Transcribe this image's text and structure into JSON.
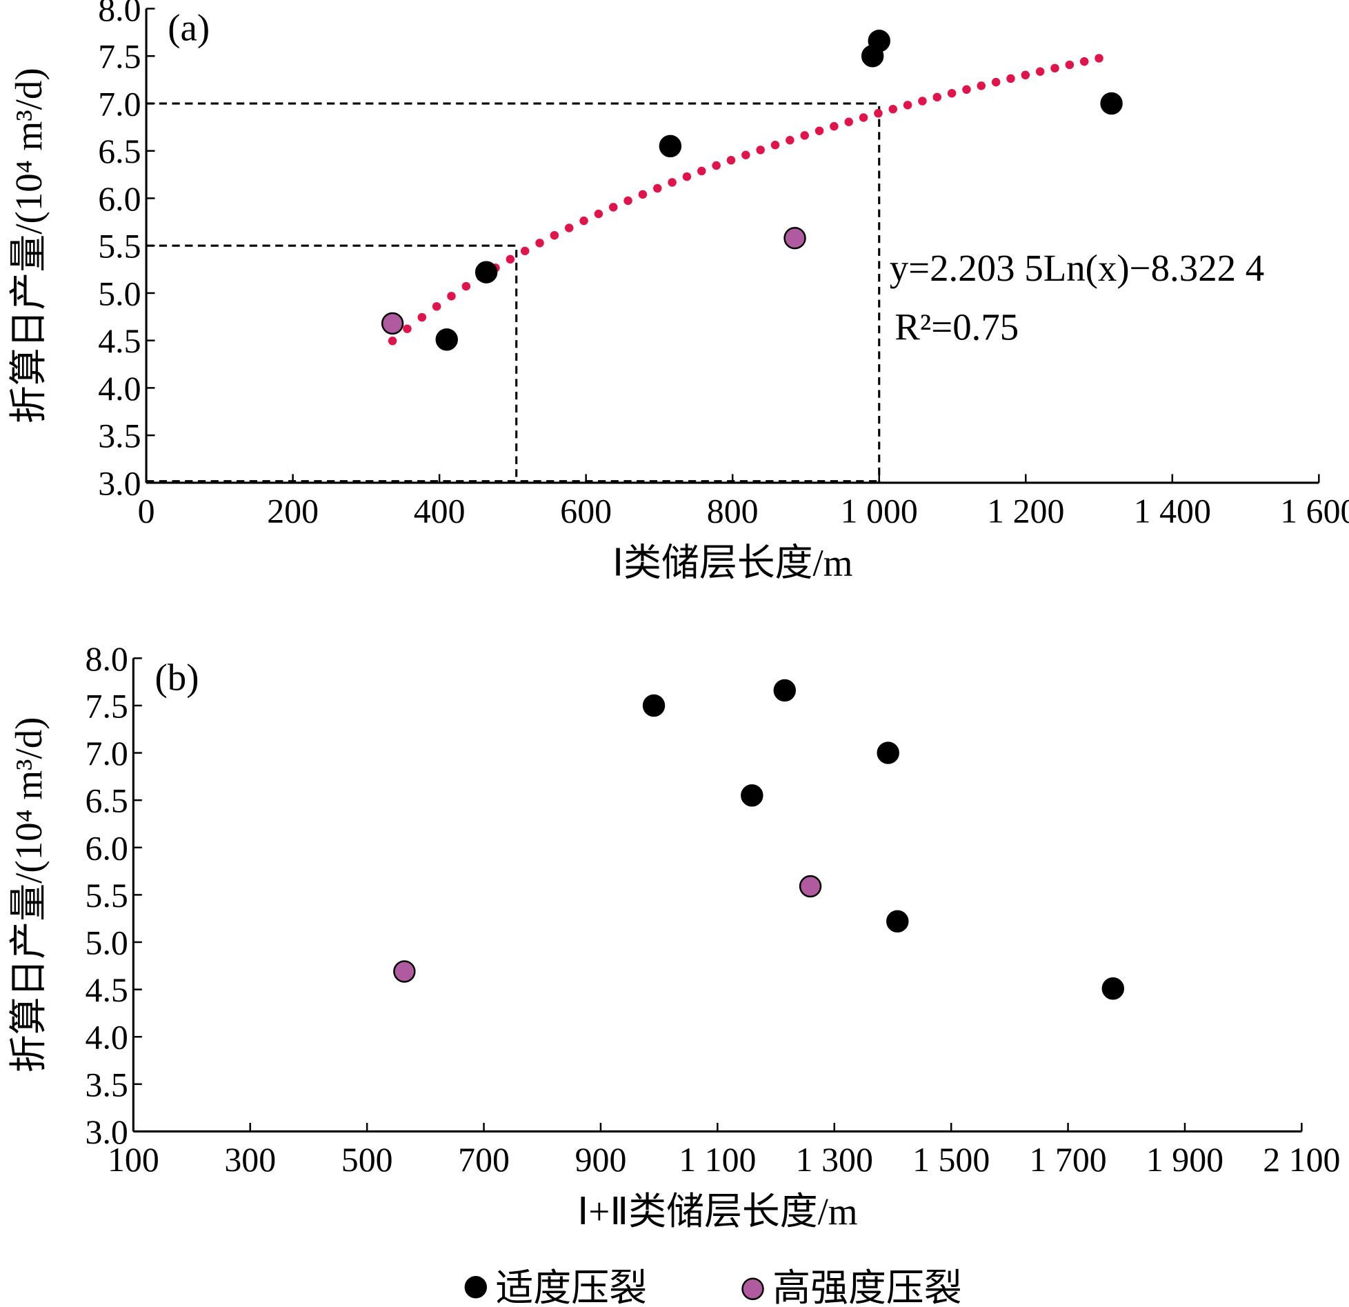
{
  "chart_data": [
    {
      "type": "scatter",
      "panel_label": "(a)",
      "xlabel": "Ⅰ类储层长度/m",
      "ylabel": "折算日产量/(10⁴ m³/d)",
      "xlim": [
        0,
        1600
      ],
      "ylim": [
        3.0,
        8.0
      ],
      "x_ticks": [
        0,
        200,
        400,
        600,
        800,
        1000,
        1200,
        1400,
        1600
      ],
      "x_tick_labels": [
        "0",
        "200",
        "400",
        "600",
        "800",
        "1 000",
        "1 200",
        "1 400",
        "1 600"
      ],
      "y_ticks": [
        3.0,
        3.5,
        4.0,
        4.5,
        5.0,
        5.5,
        6.0,
        6.5,
        7.0,
        7.5,
        8.0
      ],
      "y_tick_labels": [
        "3.0",
        "3.5",
        "4.0",
        "4.5",
        "5.0",
        "5.5",
        "6.0",
        "6.5",
        "7.0",
        "7.5",
        "8.0"
      ],
      "series": [
        {
          "name": "适度压裂",
          "color": "#000000",
          "points": [
            [
              410,
              4.51
            ],
            [
              464,
              5.22
            ],
            [
              715,
              6.55
            ],
            [
              991,
              7.5
            ],
            [
              1000,
              7.66
            ],
            [
              1317,
              7.0
            ]
          ]
        },
        {
          "name": "高强度压裂",
          "color": "#b05aa0",
          "points": [
            [
              336,
              4.68
            ],
            [
              885,
              5.58
            ]
          ]
        }
      ],
      "trendline": {
        "type": "log",
        "a": 2.2035,
        "b": -8.3224,
        "x_range": [
          336,
          1300
        ],
        "color": "#e0134a"
      },
      "equation": "y=2.203 5Ln(x)−8.322 4",
      "r2": "R²=0.75",
      "reference_lines": [
        {
          "x": 505,
          "y": 5.5
        },
        {
          "x": 1000,
          "y": 7.0
        }
      ]
    },
    {
      "type": "scatter",
      "panel_label": "(b)",
      "xlabel": "Ⅰ+Ⅱ类储层长度/m",
      "ylabel": "折算日产量/(10⁴ m³/d)",
      "xlim": [
        100,
        2100
      ],
      "ylim": [
        3.0,
        8.0
      ],
      "x_ticks": [
        100,
        300,
        500,
        700,
        900,
        1100,
        1300,
        1500,
        1700,
        1900,
        2100
      ],
      "x_tick_labels": [
        "100",
        "300",
        "500",
        "700",
        "900",
        "1 100",
        "1 300",
        "1 500",
        "1 700",
        "1 900",
        "2 100"
      ],
      "y_ticks": [
        3.0,
        3.5,
        4.0,
        4.5,
        5.0,
        5.5,
        6.0,
        6.5,
        7.0,
        7.5,
        8.0
      ],
      "y_tick_labels": [
        "3.0",
        "3.5",
        "4.0",
        "4.5",
        "5.0",
        "5.5",
        "6.0",
        "6.5",
        "7.0",
        "7.5",
        "8.0"
      ],
      "series": [
        {
          "name": "适度压裂",
          "color": "#000000",
          "points": [
            [
              991,
              7.5
            ],
            [
              1215,
              7.66
            ],
            [
              1392,
              7.0
            ],
            [
              1159,
              6.55
            ],
            [
              1408,
              5.22
            ],
            [
              1777,
              4.51
            ]
          ]
        },
        {
          "name": "高强度压裂",
          "color": "#b05aa0",
          "points": [
            [
              1259,
              5.59
            ],
            [
              564,
              4.69
            ]
          ]
        }
      ]
    }
  ],
  "legend": [
    {
      "label": "适度压裂",
      "color": "#000000"
    },
    {
      "label": "高强度压裂",
      "color": "#b05aa0"
    }
  ]
}
